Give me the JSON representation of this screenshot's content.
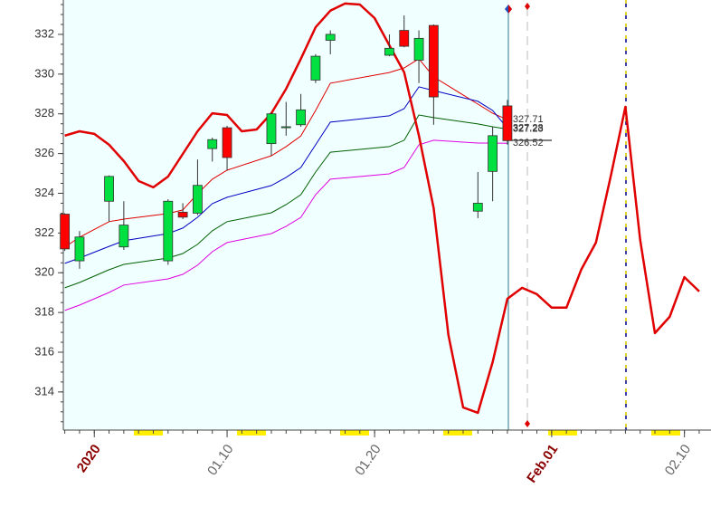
{
  "chart_data": {
    "type": "candlestick",
    "xlim": [
      -2.1,
      41.8
    ],
    "ylim": [
      312.08,
      333.73
    ],
    "yticks": [
      314,
      316,
      318,
      320,
      322,
      324,
      326,
      328,
      330,
      332
    ],
    "xticks": [
      {
        "value": 0,
        "label": "2020"
      },
      {
        "value": 9,
        "label": "01.10"
      },
      {
        "value": 19,
        "label": "01.20"
      },
      {
        "value": 31,
        "label": "Feb.01"
      },
      {
        "value": 40,
        "label": "02.10"
      }
    ],
    "candles": {
      "up_color": "#00e040",
      "down_color": "#ff0000",
      "x": [
        -2,
        -1,
        1,
        2,
        5,
        6,
        7,
        8,
        9,
        12,
        13,
        14,
        15,
        16,
        20,
        21,
        22,
        23,
        26,
        27,
        28
      ],
      "open": [
        322.95,
        320.6,
        323.6,
        321.3,
        320.6,
        323.05,
        323.0,
        326.25,
        327.3,
        326.5,
        327.3,
        327.45,
        329.7,
        331.7,
        330.95,
        332.2,
        330.7,
        332.45,
        323.1,
        325.1,
        328.4
      ],
      "high": [
        323.0,
        322.1,
        324.9,
        323.6,
        323.7,
        323.5,
        325.7,
        326.8,
        327.4,
        328.05,
        328.6,
        329.0,
        331.0,
        332.2,
        332.0,
        332.95,
        332.2,
        332.5,
        325.07,
        327.35,
        328.7
      ],
      "low": [
        321.1,
        320.2,
        322.57,
        321.15,
        320.4,
        322.7,
        322.9,
        325.6,
        325.15,
        325.9,
        326.9,
        327.35,
        329.55,
        331.0,
        330.9,
        331.35,
        329.55,
        327.45,
        322.75,
        323.6,
        326.45
      ],
      "close": [
        321.2,
        321.8,
        324.85,
        322.4,
        323.6,
        322.8,
        324.4,
        326.7,
        325.8,
        328.0,
        327.35,
        328.2,
        330.9,
        332.0,
        331.3,
        331.4,
        331.8,
        328.85,
        323.5,
        326.9,
        326.65
      ]
    },
    "series": [
      {
        "color": "#e00000",
        "values": [
          321.29,
          321.79,
          322.57,
          322.7,
          322.98,
          323.16,
          323.98,
          324.71,
          325.16,
          325.89,
          326.35,
          326.89,
          328.17,
          329.54,
          330.08,
          330.31,
          330.77,
          329.86,
          328.49,
          328.03,
          327.71
        ]
      },
      {
        "color": "#0000c0",
        "values": [
          320.47,
          320.74,
          321.33,
          321.61,
          321.97,
          322.25,
          322.79,
          323.48,
          323.8,
          324.39,
          324.8,
          325.3,
          326.44,
          327.58,
          327.9,
          328.26,
          329.36,
          329.17,
          328.63,
          328.17,
          327.28
        ]
      },
      {
        "color": "#006000",
        "values": [
          319.24,
          319.51,
          320.15,
          320.42,
          320.74,
          320.97,
          321.43,
          322.11,
          322.57,
          323.02,
          323.43,
          323.93,
          325.07,
          326.07,
          326.35,
          326.67,
          327.94,
          327.81,
          327.49,
          327.35,
          327.23
        ]
      },
      {
        "color": "#e000e0",
        "values": [
          318.1,
          318.37,
          319.01,
          319.38,
          319.69,
          319.92,
          320.38,
          321.06,
          321.52,
          321.97,
          322.34,
          322.79,
          323.93,
          324.71,
          324.98,
          325.3,
          326.44,
          326.67,
          326.53,
          326.53,
          326.52
        ]
      }
    ],
    "forecast": {
      "color": "#e00000",
      "x": [
        -2,
        -1,
        0,
        1,
        2,
        3,
        4,
        5,
        6,
        7,
        8,
        9,
        10,
        11,
        12,
        13,
        14,
        15,
        16,
        17,
        18,
        19,
        20,
        21,
        22,
        23,
        24,
        25,
        26,
        27,
        28,
        29,
        30,
        31,
        32,
        33,
        34,
        35,
        36,
        37,
        38,
        39,
        40,
        41
      ],
      "values": [
        326.9,
        327.12,
        326.99,
        326.44,
        325.62,
        324.62,
        324.3,
        324.84,
        325.98,
        327.12,
        328.03,
        327.94,
        327.12,
        327.21,
        328.03,
        329.26,
        330.77,
        332.36,
        333.19,
        333.55,
        333.5,
        332.82,
        331.45,
        330.09,
        326.9,
        323.25,
        316.87,
        313.22,
        312.95,
        315.5,
        318.69,
        319.24,
        318.92,
        318.24,
        318.24,
        320.15,
        321.52,
        324.84,
        328.35,
        321.65,
        316.96,
        317.78,
        319.78,
        319.06
      ]
    }
  }
}
